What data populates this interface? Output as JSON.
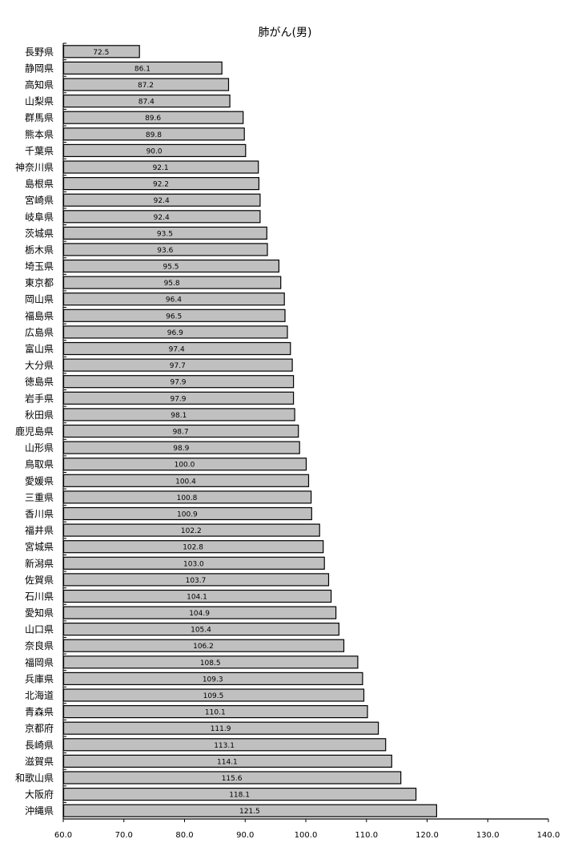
{
  "chart_data": {
    "type": "bar",
    "orientation": "horizontal",
    "title": "肺がん(男)",
    "xlabel": "",
    "ylabel": "",
    "xlim": [
      60,
      140
    ],
    "xticks": [
      "60.0",
      "70.0",
      "80.0",
      "90.0",
      "100.0",
      "110.0",
      "120.0",
      "130.0",
      "140.0"
    ],
    "grid": false,
    "bar_color": "#c0c0c0",
    "bar_edge_color": "#000000",
    "categories": [
      "長野県",
      "静岡県",
      "高知県",
      "山梨県",
      "群馬県",
      "熊本県",
      "千葉県",
      "神奈川県",
      "島根県",
      "宮崎県",
      "岐阜県",
      "茨城県",
      "栃木県",
      "埼玉県",
      "東京都",
      "岡山県",
      "福島県",
      "広島県",
      "富山県",
      "大分県",
      "徳島県",
      "岩手県",
      "秋田県",
      "鹿児島県",
      "山形県",
      "鳥取県",
      "愛媛県",
      "三重県",
      "香川県",
      "福井県",
      "宮城県",
      "新潟県",
      "佐賀県",
      "石川県",
      "愛知県",
      "山口県",
      "奈良県",
      "福岡県",
      "兵庫県",
      "北海道",
      "青森県",
      "京都府",
      "長崎県",
      "滋賀県",
      "和歌山県",
      "大阪府",
      "沖縄県"
    ],
    "values": [
      72.5,
      86.1,
      87.2,
      87.4,
      89.6,
      89.8,
      90.0,
      92.1,
      92.2,
      92.4,
      92.4,
      93.5,
      93.6,
      95.5,
      95.8,
      96.4,
      96.5,
      96.9,
      97.4,
      97.7,
      97.9,
      97.9,
      98.1,
      98.7,
      98.9,
      100.0,
      100.4,
      100.8,
      100.9,
      102.2,
      102.8,
      103.0,
      103.7,
      104.1,
      104.9,
      105.4,
      106.2,
      108.5,
      109.3,
      109.5,
      110.1,
      111.9,
      113.1,
      114.1,
      115.6,
      118.1,
      121.5
    ],
    "labels": [
      "72.5",
      "86.1",
      "87.2",
      "87.4",
      "89.6",
      "89.8",
      "90.0",
      "92.1",
      "92.2",
      "92.4",
      "92.4",
      "93.5",
      "93.6",
      "95.5",
      "95.8",
      "96.4",
      "96.5",
      "96.9",
      "97.4",
      "97.7",
      "97.9",
      "97.9",
      "98.1",
      "98.7",
      "98.9",
      "100.0",
      "100.4",
      "100.8",
      "100.9",
      "102.2",
      "102.8",
      "103.0",
      "103.7",
      "104.1",
      "104.9",
      "105.4",
      "106.2",
      "108.5",
      "109.3",
      "109.5",
      "110.1",
      "111.9",
      "113.1",
      "114.1",
      "115.6",
      "118.1",
      "121.5"
    ]
  }
}
